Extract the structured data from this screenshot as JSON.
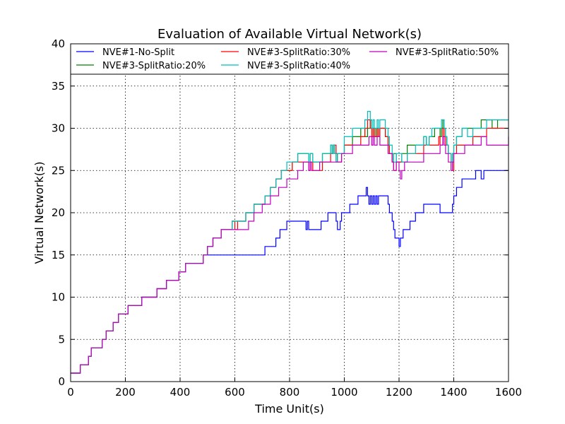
{
  "chart_data": {
    "type": "line",
    "title": "Evaluation of Available Virtual Network(s)",
    "xlabel": "Time Unit(s)",
    "ylabel": "Virtual Network(s)",
    "xlim": [
      0,
      1600
    ],
    "ylim": [
      0,
      40
    ],
    "xticks": [
      0,
      200,
      400,
      600,
      800,
      1000,
      1200,
      1400,
      1600
    ],
    "yticks": [
      0,
      5,
      10,
      15,
      20,
      25,
      30,
      35,
      40
    ],
    "xtick_labels": [
      "0",
      "200",
      "400",
      "600",
      "800",
      "1000",
      "1200",
      "1400",
      "1600"
    ],
    "ytick_labels": [
      "0",
      "5",
      "10",
      "15",
      "20",
      "25",
      "30",
      "35",
      "40"
    ],
    "grid": true,
    "legend_position": "top",
    "series": [
      {
        "name": "NVE#1-No-Split",
        "color": "#0000ff",
        "x": [
          0,
          35,
          65,
          75,
          115,
          130,
          155,
          175,
          210,
          260,
          315,
          350,
          395,
          420,
          485,
          500,
          520,
          710,
          750,
          765,
          790,
          850,
          860,
          865,
          870,
          875,
          880,
          915,
          940,
          970,
          975,
          980,
          985,
          990,
          1020,
          1050,
          1080,
          1085,
          1090,
          1095,
          1100,
          1105,
          1110,
          1115,
          1120,
          1125,
          1130,
          1160,
          1165,
          1175,
          1180,
          1185,
          1190,
          1200,
          1205,
          1210,
          1215,
          1240,
          1260,
          1290,
          1320,
          1350,
          1360,
          1375,
          1395,
          1400,
          1410,
          1430,
          1450,
          1480,
          1500,
          1510,
          1515,
          1525,
          1600
        ],
        "y": [
          1,
          2,
          3,
          4,
          5,
          6,
          7,
          8,
          9,
          10,
          11,
          12,
          13,
          14,
          15,
          15,
          15,
          16,
          17,
          18,
          19,
          19,
          18,
          19,
          18,
          18,
          18,
          19,
          20,
          19,
          18,
          18,
          19,
          20,
          21,
          22,
          23,
          22,
          21,
          22,
          21,
          22,
          21,
          22,
          21,
          22,
          22,
          21,
          20,
          19,
          18,
          17,
          17,
          16,
          17,
          17,
          18,
          19,
          20,
          21,
          21,
          20,
          20,
          20,
          21,
          22,
          23,
          24,
          24,
          25,
          24,
          25,
          25,
          25,
          25
        ]
      },
      {
        "name": "NVE#3-SplitRatio:20%",
        "color": "#008000",
        "x": [
          0,
          35,
          65,
          75,
          115,
          130,
          155,
          175,
          210,
          260,
          315,
          350,
          395,
          420,
          485,
          500,
          520,
          550,
          575,
          590,
          600,
          610,
          640,
          670,
          690,
          710,
          730,
          750,
          770,
          790,
          810,
          830,
          870,
          875,
          885,
          920,
          950,
          955,
          960,
          965,
          970,
          975,
          1000,
          1030,
          1060,
          1075,
          1085,
          1095,
          1100,
          1105,
          1110,
          1115,
          1120,
          1125,
          1130,
          1150,
          1160,
          1165,
          1175,
          1180,
          1190,
          1210,
          1230,
          1260,
          1290,
          1300,
          1310,
          1330,
          1350,
          1355,
          1360,
          1365,
          1370,
          1375,
          1380,
          1390,
          1395,
          1400,
          1410,
          1430,
          1450,
          1470,
          1480,
          1490,
          1500,
          1520,
          1540,
          1560,
          1600
        ],
        "y": [
          1,
          2,
          3,
          4,
          5,
          6,
          7,
          8,
          9,
          10,
          11,
          12,
          13,
          14,
          15,
          16,
          17,
          18,
          18,
          19,
          19,
          19,
          20,
          21,
          21,
          22,
          23,
          24,
          25,
          25,
          26,
          27,
          26,
          27,
          26,
          27,
          28,
          27,
          28,
          27,
          26,
          27,
          28,
          29,
          30,
          29,
          30,
          31,
          30,
          29,
          30,
          29,
          30,
          29,
          30,
          29,
          28,
          27,
          26,
          27,
          26,
          27,
          28,
          28,
          29,
          28,
          29,
          30,
          29,
          30,
          31,
          30,
          29,
          28,
          27,
          26,
          27,
          28,
          29,
          30,
          30,
          30,
          30,
          30,
          31,
          31,
          30,
          31,
          31
        ]
      },
      {
        "name": "NVE#3-SplitRatio:30%",
        "color": "#ff0000",
        "x": [
          0,
          35,
          65,
          75,
          115,
          130,
          155,
          175,
          210,
          260,
          315,
          350,
          395,
          420,
          485,
          500,
          520,
          550,
          575,
          590,
          600,
          610,
          640,
          670,
          690,
          710,
          730,
          750,
          770,
          790,
          810,
          830,
          870,
          875,
          885,
          920,
          950,
          960,
          970,
          975,
          990,
          1000,
          1030,
          1060,
          1075,
          1085,
          1095,
          1100,
          1105,
          1110,
          1120,
          1125,
          1130,
          1150,
          1160,
          1165,
          1175,
          1180,
          1190,
          1210,
          1230,
          1260,
          1290,
          1320,
          1345,
          1350,
          1360,
          1365,
          1370,
          1380,
          1390,
          1395,
          1400,
          1410,
          1440,
          1470,
          1500,
          1520,
          1600
        ],
        "y": [
          1,
          2,
          3,
          4,
          5,
          6,
          7,
          8,
          9,
          10,
          11,
          12,
          13,
          14,
          15,
          16,
          17,
          18,
          18,
          19,
          18,
          19,
          20,
          21,
          21,
          22,
          23,
          24,
          25,
          25,
          26,
          26,
          25,
          26,
          25,
          26,
          27,
          28,
          27,
          26,
          27,
          28,
          28,
          29,
          30,
          31,
          30,
          29,
          30,
          29,
          30,
          29,
          30,
          29,
          28,
          27,
          26,
          25,
          26,
          26,
          27,
          27,
          28,
          28,
          29,
          28,
          30,
          29,
          28,
          27,
          26,
          25,
          27,
          28,
          28,
          29,
          29,
          30,
          30
        ]
      },
      {
        "name": "NVE#3-SplitRatio:40%",
        "color": "#00bfbf",
        "x": [
          0,
          35,
          65,
          75,
          115,
          130,
          155,
          175,
          210,
          260,
          315,
          350,
          395,
          420,
          485,
          500,
          520,
          550,
          575,
          590,
          600,
          610,
          640,
          670,
          690,
          710,
          730,
          750,
          770,
          790,
          810,
          830,
          870,
          875,
          885,
          920,
          950,
          955,
          960,
          965,
          970,
          975,
          1000,
          1030,
          1060,
          1075,
          1085,
          1095,
          1100,
          1105,
          1110,
          1120,
          1125,
          1130,
          1150,
          1160,
          1165,
          1175,
          1180,
          1190,
          1210,
          1230,
          1260,
          1290,
          1300,
          1310,
          1320,
          1345,
          1350,
          1355,
          1360,
          1365,
          1370,
          1375,
          1380,
          1390,
          1395,
          1400,
          1410,
          1430,
          1450,
          1470,
          1480,
          1500,
          1520,
          1600
        ],
        "y": [
          1,
          2,
          3,
          4,
          5,
          6,
          7,
          8,
          9,
          10,
          11,
          12,
          13,
          14,
          15,
          16,
          17,
          18,
          18,
          19,
          19,
          19,
          20,
          21,
          21,
          22,
          23,
          24,
          25,
          26,
          26,
          27,
          26,
          27,
          26,
          27,
          28,
          27,
          28,
          27,
          26,
          27,
          29,
          30,
          30,
          31,
          32,
          31,
          30,
          31,
          30,
          31,
          30,
          31,
          30,
          29,
          28,
          27,
          26,
          27,
          26,
          27,
          28,
          29,
          28,
          29,
          30,
          30,
          30,
          31,
          31,
          30,
          29,
          28,
          27,
          26,
          27,
          28,
          29,
          30,
          29,
          30,
          30,
          30,
          31,
          31
        ]
      },
      {
        "name": "NVE#3-SplitRatio:50%",
        "color": "#bf00bf",
        "x": [
          0,
          35,
          65,
          75,
          115,
          130,
          155,
          175,
          210,
          260,
          315,
          350,
          395,
          420,
          485,
          500,
          520,
          550,
          575,
          650,
          670,
          700,
          730,
          760,
          790,
          830,
          850,
          870,
          875,
          880,
          910,
          950,
          990,
          1000,
          1030,
          1060,
          1080,
          1090,
          1100,
          1105,
          1110,
          1120,
          1130,
          1160,
          1175,
          1180,
          1190,
          1200,
          1205,
          1210,
          1220,
          1260,
          1290,
          1320,
          1350,
          1360,
          1365,
          1370,
          1380,
          1390,
          1395,
          1400,
          1410,
          1440,
          1480,
          1500,
          1520,
          1600
        ],
        "y": [
          1,
          2,
          3,
          4,
          5,
          6,
          7,
          8,
          9,
          10,
          11,
          12,
          13,
          14,
          15,
          16,
          17,
          18,
          18,
          19,
          20,
          21,
          22,
          23,
          24,
          25,
          26,
          25,
          26,
          25,
          26,
          26,
          27,
          27,
          28,
          28,
          28,
          29,
          28,
          29,
          28,
          29,
          28,
          27,
          26,
          25,
          26,
          25,
          24,
          25,
          26,
          26,
          27,
          27,
          28,
          29,
          28,
          27,
          26,
          25,
          26,
          27,
          27,
          28,
          28,
          29,
          28,
          29
        ]
      }
    ]
  }
}
